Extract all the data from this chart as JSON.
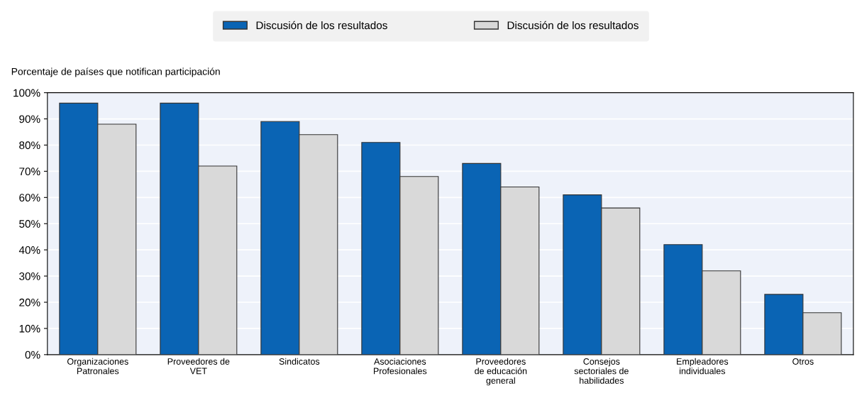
{
  "chart_data": {
    "type": "bar",
    "ylabel": "Porcentaje de países que notifican participación",
    "categories": [
      "Organizaciones\nPatronales",
      "Proveedores de\nVET",
      "Sindicatos",
      "Asociaciones\nProfesionales",
      "Proveedores\nde educación\ngeneral",
      "Consejos\nsectoriales de\nhabilidades",
      "Empleadores\nindividuales",
      "Otros"
    ],
    "series": [
      {
        "name": "Discusión de los resultados",
        "color": "#0a64b4",
        "values": [
          96,
          96,
          89,
          81,
          73,
          61,
          42,
          23
        ]
      },
      {
        "name": "Discusión de los resultados",
        "color": "#d9d9d9",
        "values": [
          88,
          72,
          84,
          68,
          64,
          56,
          32,
          16
        ]
      }
    ],
    "ylim": [
      0,
      100
    ],
    "yticks": [
      {
        "value": 0,
        "label": "0%"
      },
      {
        "value": 10,
        "label": "10%"
      },
      {
        "value": 20,
        "label": "20%"
      },
      {
        "value": 30,
        "label": "30%"
      },
      {
        "value": 40,
        "label": "40%"
      },
      {
        "value": 50,
        "label": "50%"
      },
      {
        "value": 60,
        "label": "60%"
      },
      {
        "value": 70,
        "label": "70%"
      },
      {
        "value": 80,
        "label": "80%"
      },
      {
        "value": 90,
        "label": "90%"
      },
      {
        "value": 100,
        "label": "100%"
      }
    ],
    "grid": "y",
    "legend": "top"
  }
}
